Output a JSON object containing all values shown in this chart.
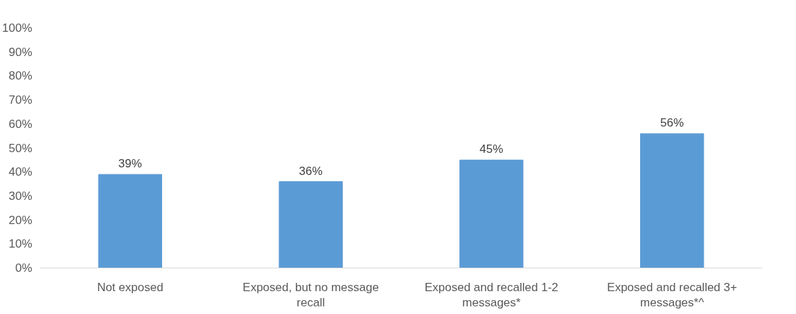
{
  "chart_data": {
    "type": "bar",
    "categories": [
      "Not exposed",
      "Exposed, but no message recall",
      "Exposed and recalled 1-2 messages*",
      "Exposed and recalled 3+ messages*^"
    ],
    "values": [
      39,
      36,
      45,
      56
    ],
    "color": "#5b9bd5",
    "value_labels": [
      "39%",
      "36%",
      "45%",
      "56%"
    ],
    "ylim": [
      0,
      100
    ],
    "yticks": [
      {
        "value": 0,
        "label": "0%"
      },
      {
        "value": 10,
        "label": "10%"
      },
      {
        "value": 20,
        "label": "20%"
      },
      {
        "value": 30,
        "label": "30%"
      },
      {
        "value": 40,
        "label": "40%"
      },
      {
        "value": 50,
        "label": "50%"
      },
      {
        "value": 60,
        "label": "60%"
      },
      {
        "value": 70,
        "label": "70%"
      },
      {
        "value": 80,
        "label": "80%"
      },
      {
        "value": 90,
        "label": "90%"
      },
      {
        "value": 100,
        "label": "100%"
      }
    ],
    "grid": false
  }
}
